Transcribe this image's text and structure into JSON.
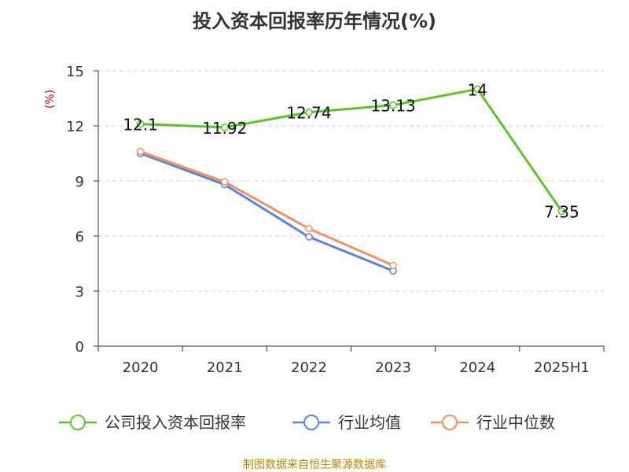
{
  "chart_data": {
    "type": "line",
    "title": "投入资本回报率历年情况(%)",
    "ylabel": "(%)",
    "xlabel": "",
    "ylim": [
      0,
      15
    ],
    "yticks": [
      0,
      3,
      6,
      9,
      12,
      15
    ],
    "grid": true,
    "legend_position": "bottom",
    "categories": [
      "2020",
      "2021",
      "2022",
      "2023",
      "2024",
      "2025H1"
    ],
    "series": [
      {
        "name": "公司投入资本回报率",
        "color": "#5cc42b",
        "values": [
          12.1,
          11.92,
          12.74,
          13.13,
          14,
          7.35
        ],
        "labels": [
          "12.1",
          "11.92",
          "12.74",
          "13.13",
          "14",
          "7.35"
        ]
      },
      {
        "name": "行业均值",
        "color": "#5b83dc",
        "values": [
          10.5,
          8.8,
          5.95,
          4.1,
          null,
          null
        ]
      },
      {
        "name": "行业中位数",
        "color": "#f39162",
        "values": [
          10.6,
          8.95,
          6.4,
          4.4,
          null,
          null
        ]
      }
    ]
  },
  "source": "制图数据来自恒生聚源数据库"
}
